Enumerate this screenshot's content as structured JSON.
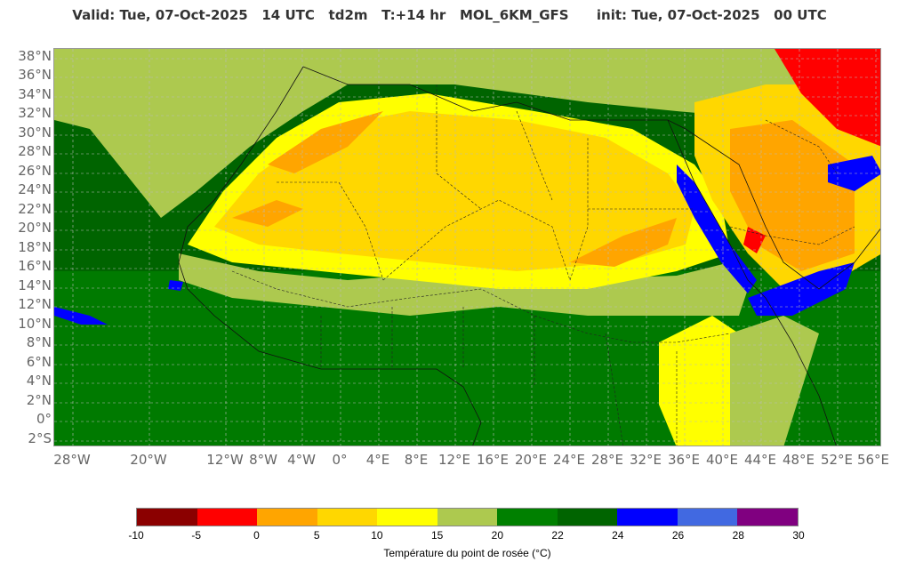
{
  "header": {
    "title": "Valid: Tue, 07-Oct-2025   14 UTC   td2m   T:+14 hr   MOL_6KM_GFS      init: Tue, 07-Oct-2025   00 UTC"
  },
  "map": {
    "lat_labels": [
      "38°N",
      "36°N",
      "34°N",
      "32°N",
      "30°N",
      "28°N",
      "26°N",
      "24°N",
      "22°N",
      "20°N",
      "18°N",
      "16°N",
      "14°N",
      "12°N",
      "10°N",
      "8°N",
      "6°N",
      "4°N",
      "2°N",
      "0°",
      "2°S"
    ],
    "lon_labels": [
      "28°W",
      "20°W",
      "12°W",
      "8°W",
      "4°W",
      "0°",
      "4°E",
      "8°E",
      "12°E",
      "16°E",
      "20°E",
      "24°E",
      "28°E",
      "32°E",
      "36°E",
      "40°E",
      "44°E",
      "48°E",
      "52°E",
      "56°E"
    ],
    "colors": {
      "ocean": "#006400",
      "sea_green": "#008000",
      "red": "#ff0000",
      "orange": "#ffa500",
      "gold": "#ffd700",
      "yellow": "#ffff00",
      "olive": "#adc94f",
      "blue": "#0000ff"
    }
  },
  "legend": {
    "title": "Température du point de rosée (°C)",
    "ticks": [
      "-10",
      "-5",
      "0",
      "5",
      "10",
      "15",
      "20",
      "22",
      "24",
      "26",
      "28",
      "30"
    ],
    "colors": [
      "#8b0000",
      "#ff0000",
      "#ffa500",
      "#ffd700",
      "#ffff00",
      "#adc94f",
      "#008000",
      "#006400",
      "#0000ff",
      "#4169e1",
      "#800080"
    ]
  }
}
